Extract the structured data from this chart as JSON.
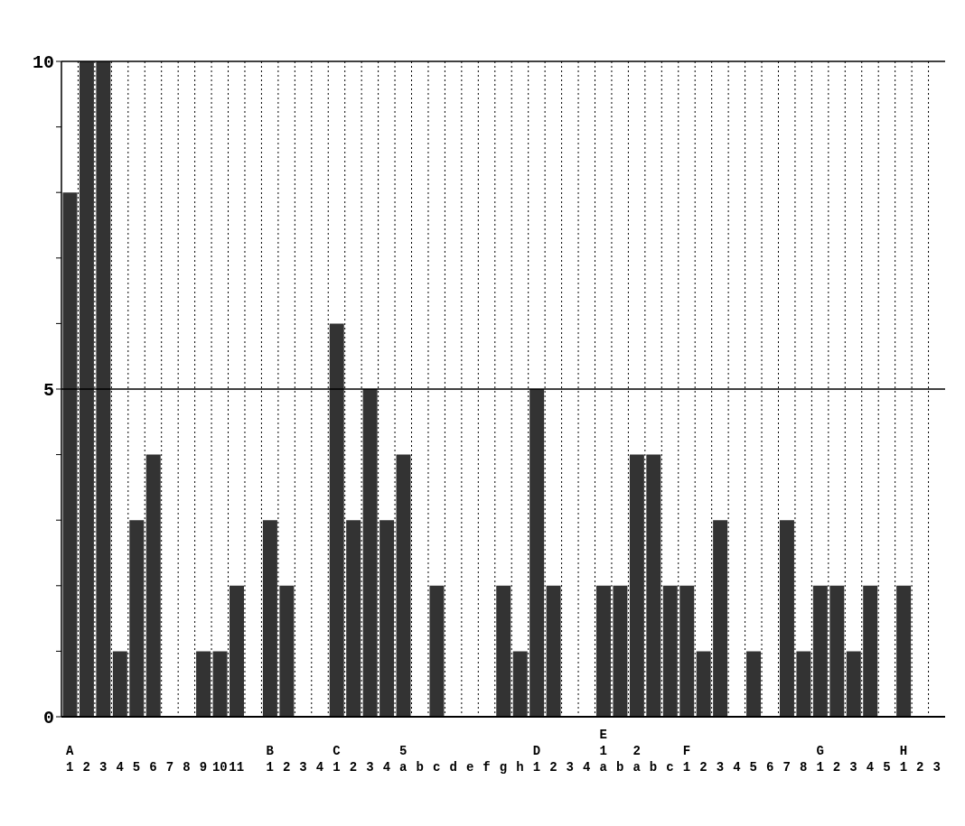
{
  "chart_data": {
    "type": "bar",
    "categories": [
      "A\n1",
      "2",
      "3",
      "4",
      "5",
      "6",
      "7",
      "8",
      "9",
      "10",
      "11",
      null,
      "B\n1",
      "2",
      "3",
      "4",
      "C\n1",
      "2",
      "3",
      "4",
      "5\na",
      "b",
      "c",
      "d",
      "e",
      "f",
      "g",
      "h",
      "D\n1",
      "2",
      "3",
      "4",
      "E\n1\na",
      "b",
      "2\na",
      "b",
      "c",
      "F\n1",
      "2",
      "3",
      "4",
      "5",
      "6",
      "7",
      "8",
      "G\n1",
      "2",
      "3",
      "4",
      "5",
      "H\n1",
      "2",
      "3"
    ],
    "values": [
      8,
      10,
      10,
      1,
      3,
      4,
      0,
      0,
      1,
      1,
      2,
      0,
      3,
      2,
      0,
      0,
      6,
      3,
      5,
      3,
      4,
      0,
      2,
      0,
      0,
      0,
      2,
      1,
      5,
      2,
      0,
      0,
      2,
      2,
      4,
      4,
      2,
      2,
      1,
      3,
      0,
      1,
      0,
      3,
      1,
      2,
      2,
      1,
      2,
      0,
      2,
      0,
      0
    ],
    "color": "#333333",
    "ylim": [
      0,
      10
    ],
    "yticks": [
      0,
      {
        "value": 1,
        "label": null
      },
      {
        "value": 2,
        "label": null
      },
      {
        "value": 3,
        "label": null
      },
      {
        "value": 4,
        "label": null
      },
      5,
      {
        "value": 6,
        "label": null
      },
      {
        "value": 7,
        "label": null
      },
      {
        "value": 8,
        "label": null
      },
      {
        "value": 9,
        "label": null
      },
      10
    ],
    "grid": "x",
    "ref_lines": [
      {
        "axis": "y",
        "value": 5
      }
    ]
  }
}
